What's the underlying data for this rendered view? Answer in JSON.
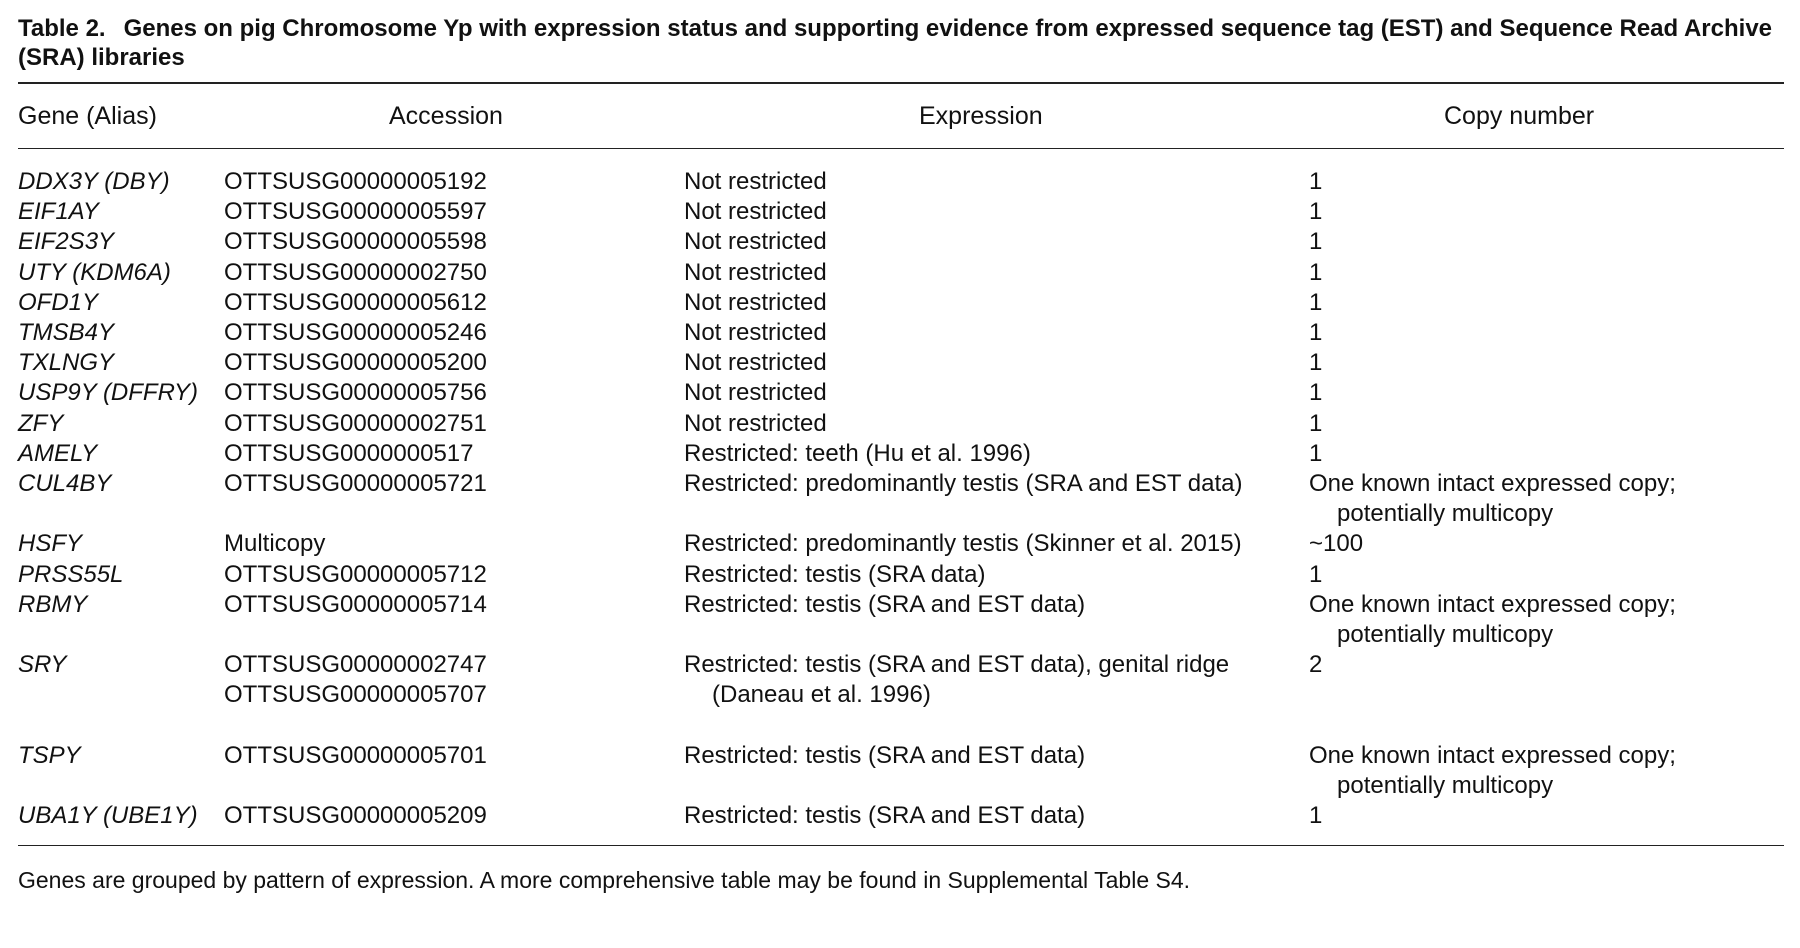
{
  "table": {
    "label": "Table 2.",
    "caption": "Genes on pig Chromosome Yp with expression status and supporting evidence from expressed sequence tag (EST) and Sequence Read Archive (SRA) libraries",
    "headers": [
      "Gene (Alias)",
      "Accession",
      "Expression",
      "Copy number"
    ],
    "rows": [
      {
        "gene": "DDX3Y (DBY)",
        "accession": "OTTSUSG00000005192",
        "expression": "Not restricted",
        "copy": "1"
      },
      {
        "gene": "EIF1AY",
        "accession": "OTTSUSG00000005597",
        "expression": "Not restricted",
        "copy": "1"
      },
      {
        "gene": "EIF2S3Y",
        "accession": "OTTSUSG00000005598",
        "expression": "Not restricted",
        "copy": "1"
      },
      {
        "gene": "UTY (KDM6A)",
        "accession": "OTTSUSG00000002750",
        "expression": "Not restricted",
        "copy": "1"
      },
      {
        "gene": "OFD1Y",
        "accession": "OTTSUSG00000005612",
        "expression": "Not restricted",
        "copy": "1"
      },
      {
        "gene": "TMSB4Y",
        "accession": "OTTSUSG00000005246",
        "expression": "Not restricted",
        "copy": "1"
      },
      {
        "gene": "TXLNGY",
        "accession": "OTTSUSG00000005200",
        "expression": "Not restricted",
        "copy": "1"
      },
      {
        "gene": "USP9Y (DFFRY)",
        "accession": "OTTSUSG00000005756",
        "expression": "Not restricted",
        "copy": "1"
      },
      {
        "gene": "ZFY",
        "accession": "OTTSUSG00000002751",
        "expression": "Not restricted",
        "copy": "1"
      },
      {
        "gene": "AMELY",
        "accession": "OTTSUSG0000000517",
        "expression": "Restricted: teeth (Hu et al. 1996)",
        "copy": "1"
      },
      {
        "gene": "CUL4BY",
        "accession": "OTTSUSG00000005721",
        "expression": "Restricted: predominantly testis (SRA and EST data)",
        "copy": "One known intact expressed copy; potentially multicopy"
      },
      {
        "gene": "HSFY",
        "accession": "Multicopy",
        "expression": "Restricted: predominantly testis (Skinner et al. 2015)",
        "copy": "~100"
      },
      {
        "gene": "PRSS55L",
        "accession": "OTTSUSG00000005712",
        "expression": "Restricted: testis (SRA data)",
        "copy": "1"
      },
      {
        "gene": "RBMY",
        "accession": "OTTSUSG00000005714",
        "expression": "Restricted: testis (SRA and EST data)",
        "copy": "One known intact expressed copy; potentially multicopy"
      },
      {
        "gene": "SRY",
        "accession": "OTTSUSG00000002747",
        "accession_2": "OTTSUSG00000005707",
        "expression": "Restricted: testis (SRA and EST data), genital ridge (Daneau et al. 1996)",
        "copy": "2"
      },
      {
        "gene": "TSPY",
        "accession": "OTTSUSG00000005701",
        "expression": "Restricted: testis (SRA and EST data)",
        "copy": "One known intact expressed copy; potentially multicopy"
      },
      {
        "gene": "UBA1Y (UBE1Y)",
        "accession": "OTTSUSG00000005209",
        "expression": "Restricted: testis (SRA and EST data)",
        "copy": "1"
      }
    ],
    "footnote": "Genes are grouped by pattern of expression. A more comprehensive table may be found in Supplemental Table S4."
  }
}
